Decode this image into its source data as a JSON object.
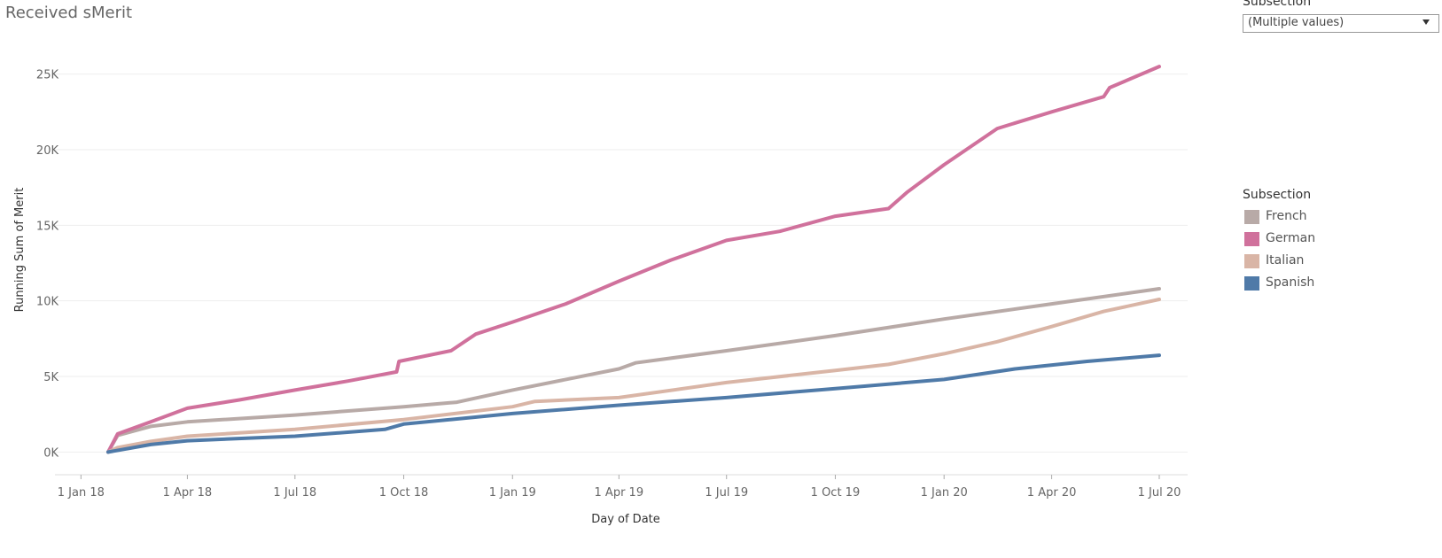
{
  "title": "Received sMerit",
  "filter": {
    "label": "Subsection",
    "selected": "(Multiple values)",
    "icon": "chevron-down-icon"
  },
  "legend": {
    "title": "Subsection",
    "items": [
      {
        "label": "French",
        "color": "#b8aaa7"
      },
      {
        "label": "German",
        "color": "#d0719c"
      },
      {
        "label": "Italian",
        "color": "#d9b5a6"
      },
      {
        "label": "Spanish",
        "color": "#4f7aa8"
      }
    ]
  },
  "chart_data": {
    "type": "line",
    "xlabel": "Day of Date",
    "ylabel": "Running Sum of Merit",
    "xlim": [
      "2017-12-10",
      "2020-07-25"
    ],
    "ylim": [
      -1500,
      26500
    ],
    "x_ticks": [
      {
        "date": "2018-01-01",
        "label": "1 Jan 18"
      },
      {
        "date": "2018-04-01",
        "label": "1 Apr 18"
      },
      {
        "date": "2018-07-01",
        "label": "1 Jul 18"
      },
      {
        "date": "2018-10-01",
        "label": "1 Oct 18"
      },
      {
        "date": "2019-01-01",
        "label": "1 Jan 19"
      },
      {
        "date": "2019-04-01",
        "label": "1 Apr 19"
      },
      {
        "date": "2019-07-01",
        "label": "1 Jul 19"
      },
      {
        "date": "2019-10-01",
        "label": "1 Oct 19"
      },
      {
        "date": "2020-01-01",
        "label": "1 Jan 20"
      },
      {
        "date": "2020-04-01",
        "label": "1 Apr 20"
      },
      {
        "date": "2020-07-01",
        "label": "1 Jul 20"
      }
    ],
    "y_ticks": [
      {
        "value": 0,
        "label": "0K"
      },
      {
        "value": 5000,
        "label": "5K"
      },
      {
        "value": 10000,
        "label": "10K"
      },
      {
        "value": 15000,
        "label": "15K"
      },
      {
        "value": 20000,
        "label": "20K"
      },
      {
        "value": 25000,
        "label": "25K"
      }
    ],
    "grid": true,
    "legend_position": "right",
    "series": [
      {
        "name": "French",
        "color": "#b8aaa7",
        "points": [
          [
            "2018-01-24",
            0
          ],
          [
            "2018-02-01",
            1100
          ],
          [
            "2018-03-01",
            1700
          ],
          [
            "2018-04-01",
            2000
          ],
          [
            "2018-07-01",
            2450
          ],
          [
            "2018-10-01",
            3000
          ],
          [
            "2018-11-15",
            3300
          ],
          [
            "2019-01-01",
            4100
          ],
          [
            "2019-04-01",
            5500
          ],
          [
            "2019-04-15",
            5900
          ],
          [
            "2019-07-01",
            6700
          ],
          [
            "2019-10-01",
            7700
          ],
          [
            "2020-01-01",
            8800
          ],
          [
            "2020-04-01",
            9800
          ],
          [
            "2020-07-01",
            10800
          ]
        ]
      },
      {
        "name": "German",
        "color": "#d0719c",
        "points": [
          [
            "2018-01-24",
            0
          ],
          [
            "2018-02-01",
            1200
          ],
          [
            "2018-03-01",
            2000
          ],
          [
            "2018-04-01",
            2900
          ],
          [
            "2018-05-15",
            3450
          ],
          [
            "2018-07-01",
            4100
          ],
          [
            "2018-08-15",
            4700
          ],
          [
            "2018-09-25",
            5300
          ],
          [
            "2018-09-27",
            6000
          ],
          [
            "2018-11-10",
            6700
          ],
          [
            "2018-12-01",
            7800
          ],
          [
            "2019-01-01",
            8600
          ],
          [
            "2019-02-15",
            9800
          ],
          [
            "2019-04-01",
            11300
          ],
          [
            "2019-05-15",
            12700
          ],
          [
            "2019-07-01",
            14000
          ],
          [
            "2019-08-15",
            14600
          ],
          [
            "2019-10-01",
            15600
          ],
          [
            "2019-11-15",
            16100
          ],
          [
            "2019-12-01",
            17200
          ],
          [
            "2020-01-01",
            19000
          ],
          [
            "2020-02-15",
            21400
          ],
          [
            "2020-04-01",
            22500
          ],
          [
            "2020-05-15",
            23500
          ],
          [
            "2020-05-20",
            24100
          ],
          [
            "2020-07-01",
            25500
          ]
        ]
      },
      {
        "name": "Italian",
        "color": "#d9b5a6",
        "points": [
          [
            "2018-01-24",
            0
          ],
          [
            "2018-02-01",
            300
          ],
          [
            "2018-03-01",
            700
          ],
          [
            "2018-04-01",
            1050
          ],
          [
            "2018-07-01",
            1500
          ],
          [
            "2018-10-01",
            2150
          ],
          [
            "2019-01-01",
            3000
          ],
          [
            "2019-01-20",
            3350
          ],
          [
            "2019-04-01",
            3600
          ],
          [
            "2019-07-01",
            4600
          ],
          [
            "2019-10-01",
            5400
          ],
          [
            "2019-11-15",
            5800
          ],
          [
            "2020-01-01",
            6500
          ],
          [
            "2020-02-15",
            7300
          ],
          [
            "2020-04-01",
            8300
          ],
          [
            "2020-05-15",
            9300
          ],
          [
            "2020-07-01",
            10100
          ]
        ]
      },
      {
        "name": "Spanish",
        "color": "#4f7aa8",
        "points": [
          [
            "2018-01-24",
            0
          ],
          [
            "2018-03-01",
            500
          ],
          [
            "2018-04-01",
            750
          ],
          [
            "2018-07-01",
            1050
          ],
          [
            "2018-09-15",
            1500
          ],
          [
            "2018-10-01",
            1850
          ],
          [
            "2019-01-01",
            2550
          ],
          [
            "2019-04-01",
            3100
          ],
          [
            "2019-07-01",
            3600
          ],
          [
            "2019-10-01",
            4200
          ],
          [
            "2020-01-01",
            4800
          ],
          [
            "2020-03-01",
            5500
          ],
          [
            "2020-05-01",
            6000
          ],
          [
            "2020-07-01",
            6400
          ]
        ]
      }
    ]
  }
}
